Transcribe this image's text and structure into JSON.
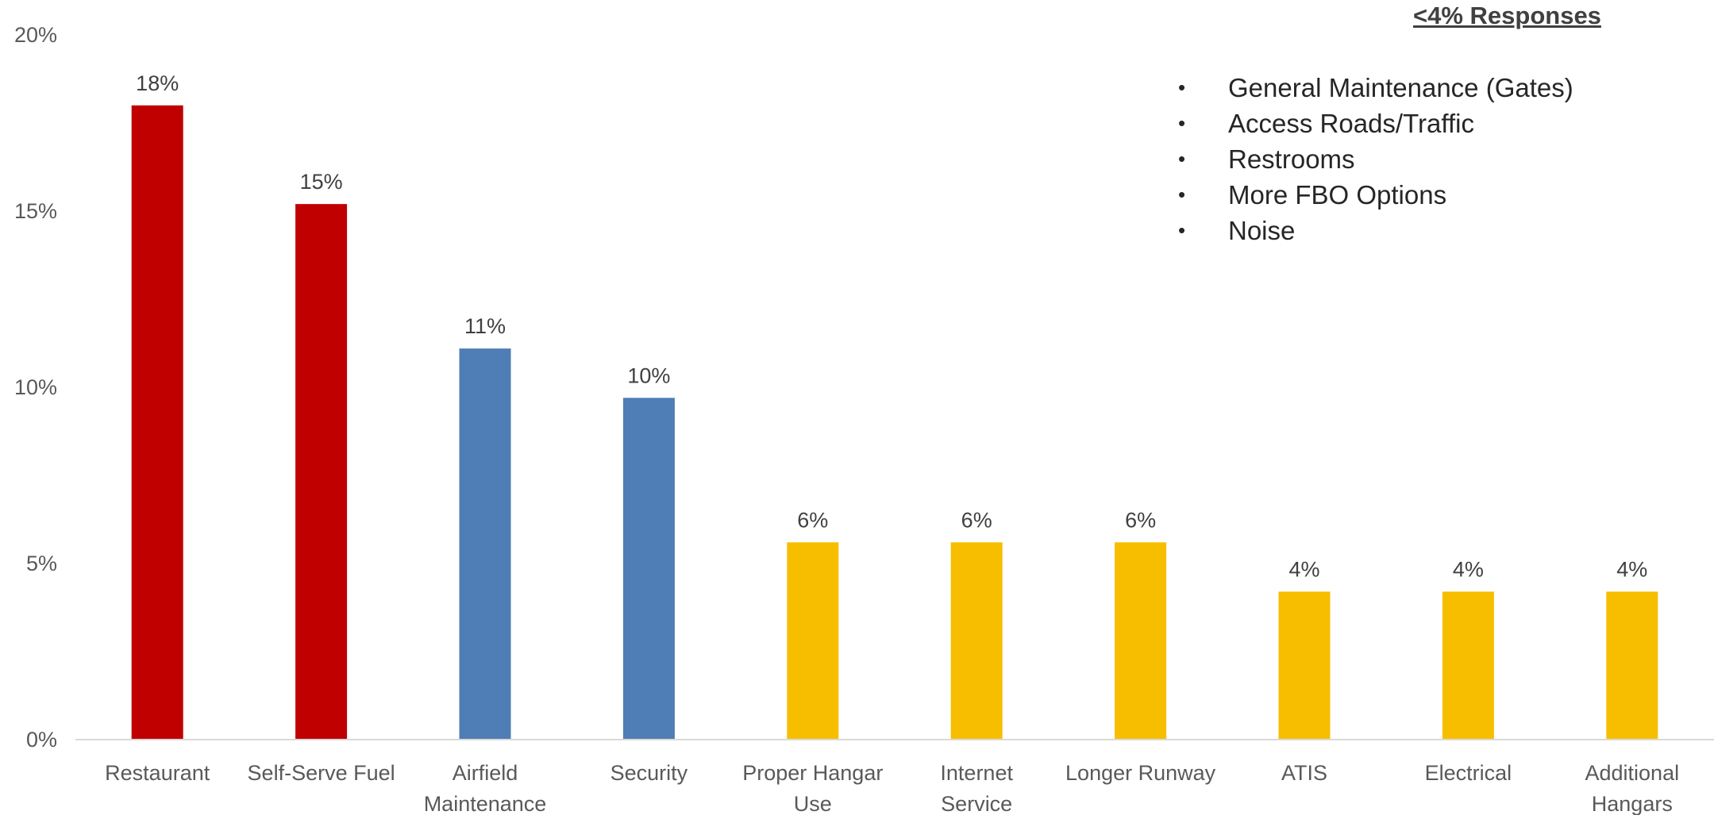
{
  "chart_data": {
    "type": "bar",
    "categories": [
      [
        "Restaurant"
      ],
      [
        "Self-Serve Fuel"
      ],
      [
        "Airfield",
        "Maintenance"
      ],
      [
        "Security"
      ],
      [
        "Proper Hangar",
        "Use"
      ],
      [
        "Internet",
        "Service"
      ],
      [
        "Longer Runway"
      ],
      [
        "ATIS"
      ],
      [
        "Electrical"
      ],
      [
        "Additional",
        "Hangars"
      ]
    ],
    "values": [
      18,
      15,
      11,
      10,
      6,
      6,
      6,
      4,
      4,
      4
    ],
    "plotted_values": [
      18.0,
      15.2,
      11.1,
      9.7,
      5.6,
      5.6,
      5.6,
      4.2,
      4.2,
      4.2
    ],
    "data_labels": [
      "18%",
      "15%",
      "11%",
      "10%",
      "6%",
      "6%",
      "6%",
      "4%",
      "4%",
      "4%"
    ],
    "bar_colors": [
      "#C00000",
      "#C00000",
      "#4F7DB5",
      "#4F7DB5",
      "#F7BE00",
      "#F7BE00",
      "#F7BE00",
      "#F7BE00",
      "#F7BE00",
      "#F7BE00"
    ],
    "yticks": [
      0,
      5,
      10,
      15,
      20
    ],
    "ytick_labels": [
      "0%",
      "5%",
      "10%",
      "15%",
      "20%"
    ],
    "ylim": [
      0,
      20
    ],
    "title": "",
    "xlabel": "",
    "ylabel": "",
    "grid": false,
    "legend": "none"
  },
  "note": {
    "title": "<4% Responses",
    "items": [
      "General Maintenance (Gates)",
      "Access Roads/Traffic",
      "Restrooms",
      "More FBO Options",
      "Noise"
    ]
  }
}
